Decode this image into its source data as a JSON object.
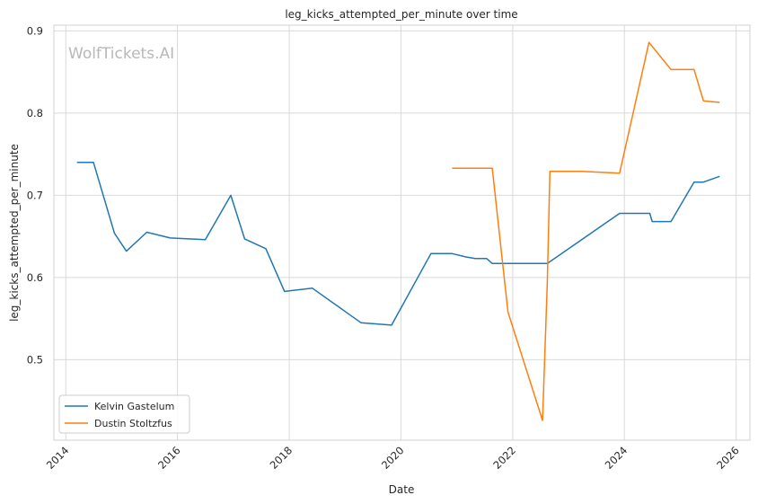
{
  "chart_data": {
    "type": "line",
    "title": "leg_kicks_attempted_per_minute over time",
    "xlabel": "Date",
    "ylabel": "leg_kicks_attempted_per_minute",
    "watermark": "WolfTickets.AI",
    "xlim": [
      "2013-10-15",
      "2026-04-01"
    ],
    "ylim": [
      0.402,
      0.907
    ],
    "x_ticks": [
      "2014",
      "2016",
      "2018",
      "2020",
      "2022",
      "2024",
      "2026"
    ],
    "y_ticks": [
      "0.5",
      "0.6",
      "0.7",
      "0.8",
      "0.9"
    ],
    "y_tick_values": [
      0.5,
      0.6,
      0.7,
      0.8,
      0.9
    ],
    "grid": true,
    "legend_position": "lower-left",
    "series": [
      {
        "name": "Kelvin Gastelum",
        "color": "#1f77b4",
        "points": [
          [
            "2014-03-15",
            0.74
          ],
          [
            "2014-07-01",
            0.74
          ],
          [
            "2014-11-15",
            0.654
          ],
          [
            "2015-02-01",
            0.632
          ],
          [
            "2015-06-15",
            0.655
          ],
          [
            "2015-11-15",
            0.648
          ],
          [
            "2016-07-01",
            0.646
          ],
          [
            "2016-12-15",
            0.7
          ],
          [
            "2017-03-15",
            0.647
          ],
          [
            "2017-08-01",
            0.635
          ],
          [
            "2017-12-01",
            0.583
          ],
          [
            "2018-06-01",
            0.587
          ],
          [
            "2019-04-15",
            0.545
          ],
          [
            "2019-11-01",
            0.542
          ],
          [
            "2020-07-15",
            0.629
          ],
          [
            "2020-12-01",
            0.629
          ],
          [
            "2021-03-01",
            0.625
          ],
          [
            "2021-05-01",
            0.623
          ],
          [
            "2021-07-15",
            0.623
          ],
          [
            "2021-08-20",
            0.617
          ],
          [
            "2022-08-15",
            0.617
          ],
          [
            "2023-12-01",
            0.678
          ],
          [
            "2024-06-15",
            0.678
          ],
          [
            "2024-07-01",
            0.668
          ],
          [
            "2024-11-01",
            0.668
          ],
          [
            "2025-04-01",
            0.716
          ],
          [
            "2025-06-01",
            0.716
          ],
          [
            "2025-09-15",
            0.723
          ]
        ]
      },
      {
        "name": "Dustin Stoltzfus",
        "color": "#ff7f0e",
        "points": [
          [
            "2020-12-01",
            0.733
          ],
          [
            "2021-08-20",
            0.733
          ],
          [
            "2021-12-01",
            0.558
          ],
          [
            "2022-07-15",
            0.426
          ],
          [
            "2022-08-15",
            0.594
          ],
          [
            "2022-09-01",
            0.729
          ],
          [
            "2023-04-01",
            0.729
          ],
          [
            "2023-12-01",
            0.727
          ],
          [
            "2024-06-10",
            0.886
          ],
          [
            "2024-11-01",
            0.853
          ],
          [
            "2025-04-01",
            0.853
          ],
          [
            "2025-06-01",
            0.815
          ],
          [
            "2025-09-15",
            0.813
          ]
        ]
      }
    ]
  }
}
